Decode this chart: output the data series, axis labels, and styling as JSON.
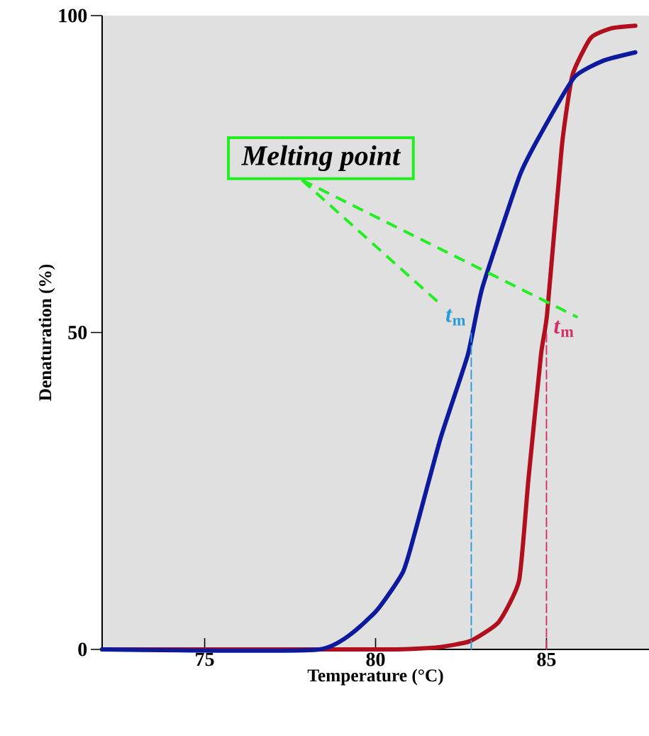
{
  "chart_data": {
    "type": "line",
    "xlabel": "Temperature (°C)",
    "ylabel": "Denaturation (%)",
    "xlim": [
      72,
      88
    ],
    "ylim": [
      0,
      100
    ],
    "xticks": [
      75,
      80,
      85
    ],
    "yticks": [
      0,
      50,
      100
    ],
    "grid": false,
    "annotations": [
      "Melting point"
    ],
    "series": [
      {
        "color": "#b0101e",
        "x": [
          72,
          78.4,
          80.5,
          81.78,
          82.76,
          83.6,
          84.2,
          84.47,
          84.84,
          85.02,
          85.45,
          85.76,
          86.3,
          86.9,
          87.6
        ],
        "values": [
          0,
          0,
          0,
          0.3,
          1.3,
          4.3,
          10.9,
          26.7,
          46.5,
          53,
          79.4,
          90.6,
          96.5,
          98,
          98.4
        ]
      },
      {
        "color": "#0d1a9c",
        "x": [
          72,
          78.36,
          79.94,
          80.8,
          81.17,
          81.9,
          82.7,
          83.12,
          84.22,
          84.84,
          85.82,
          86.67,
          87.6
        ],
        "values": [
          0,
          0,
          5.6,
          12.2,
          18.8,
          33.3,
          46.5,
          57,
          74.8,
          81.4,
          90.3,
          92.9,
          94.2
        ]
      },
      {
        "type": "line",
        "name": "*t*$_{m}$",
        "color": "#2a9ad8",
        "line_style": "dashed",
        "x": [
          82.8,
          82.8
        ],
        "values": [
          0,
          50
        ]
      },
      {
        "type": "line",
        "name": "*t*$_{m}$",
        "color": "#d0306a",
        "line_style": "dashed",
        "x": [
          85.0,
          85.0
        ],
        "values": [
          0,
          50
        ]
      }
    ]
  }
}
